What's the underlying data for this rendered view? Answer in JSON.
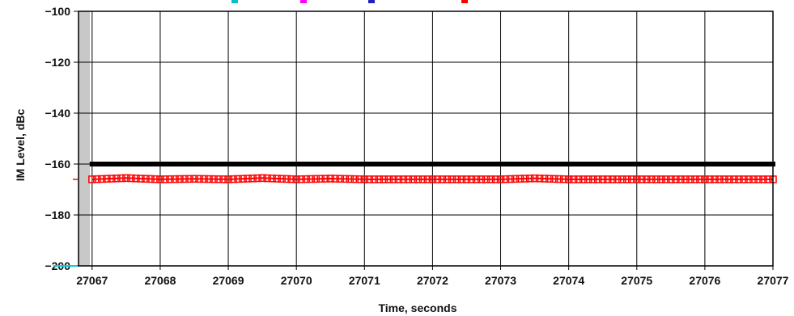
{
  "chart_data": {
    "type": "line",
    "title": "",
    "xlabel": "Time, seconds",
    "ylabel": "IM Level, dBc",
    "xlim": [
      27066.8,
      27077
    ],
    "ylim": [
      -200,
      -100
    ],
    "grid": true,
    "x_ticks": [
      27067,
      27068,
      27069,
      27070,
      27071,
      27072,
      27073,
      27074,
      27075,
      27076,
      27077
    ],
    "y_ticks": [
      -100,
      -120,
      -140,
      -160,
      -180,
      -200
    ],
    "series": [
      {
        "color": "#000000",
        "marker": "filled-square",
        "x": [
          27067,
          27068,
          27069,
          27070,
          27071,
          27072,
          27073,
          27074,
          27075,
          27076,
          27077
        ],
        "y": [
          -160,
          -160,
          -160,
          -160,
          -160,
          -160,
          -160,
          -160,
          -160,
          -160,
          -160
        ]
      },
      {
        "color": "#ff0000",
        "marker": "open-square",
        "x": [
          27067,
          27067.5,
          27068,
          27068.5,
          27069,
          27069.5,
          27070,
          27070.5,
          27071,
          27071.5,
          27072,
          27072.5,
          27073,
          27073.5,
          27074,
          27074.5,
          27075,
          27075.5,
          27076,
          27076.5,
          27077
        ],
        "y": [
          -166,
          -165.5,
          -166,
          -165.8,
          -166,
          -165.5,
          -166,
          -165.7,
          -166,
          -166,
          -166,
          -166,
          -166,
          -165.6,
          -166,
          -166,
          -166,
          -166,
          -166,
          -166,
          -166
        ]
      }
    ],
    "legend_swatches": [
      {
        "color": "#00c0d0"
      },
      {
        "color": "#ff00ff"
      },
      {
        "color": "#2020c0"
      },
      {
        "color": "#ff0000"
      }
    ]
  }
}
